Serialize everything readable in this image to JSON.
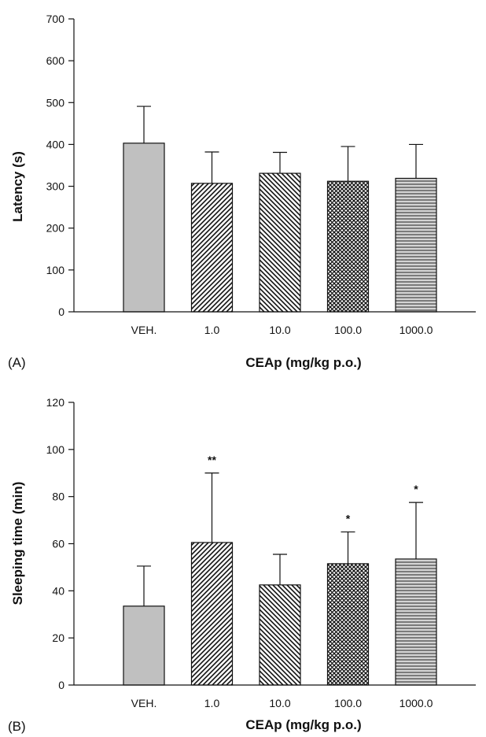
{
  "chart_data": [
    {
      "type": "bar",
      "panel_label": "(A)",
      "categories": [
        "VEH.",
        "1.0",
        "10.0",
        "100.0",
        "1000.0"
      ],
      "values": [
        403,
        307,
        331,
        312,
        319
      ],
      "errors": [
        88,
        75,
        50,
        83,
        81
      ],
      "annotations": [
        "",
        "",
        "",
        "",
        ""
      ],
      "patterns": [
        "solid-gray",
        "diagonal-up",
        "diagonal-down",
        "crosshatch",
        "horizontal"
      ],
      "ylabel": "Latency (s)",
      "xlabel": "CEAp (mg/kg p.o.)",
      "ylim": [
        0,
        700
      ],
      "yticks": [
        0,
        100,
        200,
        300,
        400,
        500,
        600,
        700
      ],
      "grid": false
    },
    {
      "type": "bar",
      "panel_label": "(B)",
      "categories": [
        "VEH.",
        "1.0",
        "10.0",
        "100.0",
        "1000.0"
      ],
      "values": [
        33.5,
        60.5,
        42.5,
        51.5,
        53.5
      ],
      "errors": [
        17,
        29.5,
        13,
        13.5,
        24
      ],
      "annotations": [
        "",
        "**",
        "",
        "*",
        "*"
      ],
      "patterns": [
        "solid-gray",
        "diagonal-up",
        "diagonal-down",
        "crosshatch",
        "horizontal"
      ],
      "ylabel": "Sleeping time (min)",
      "xlabel": "CEAp (mg/kg p.o.)",
      "ylim": [
        0,
        120
      ],
      "yticks": [
        0,
        20,
        40,
        60,
        80,
        100,
        120
      ],
      "grid": false
    }
  ],
  "colors": {
    "bar_fill": "#c0c0c0",
    "stroke": "#111111",
    "background": "#ffffff"
  }
}
